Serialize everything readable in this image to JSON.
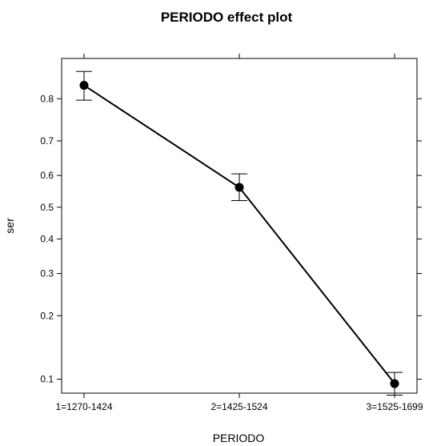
{
  "chart_data": {
    "type": "line",
    "title": "PERIODO effect plot",
    "xlabel": "PERIODO",
    "ylabel": "ser",
    "categories": [
      "1=1270-1424",
      "2=1425-1524",
      "3=1525-1699"
    ],
    "y_scale": "logit",
    "ylim": [
      0.085,
      0.87
    ],
    "y_ticks": [
      0.1,
      0.2,
      0.3,
      0.4,
      0.5,
      0.6,
      0.7,
      0.8
    ],
    "y_tick_labels": [
      "0.1",
      "0.2",
      "0.3",
      "0.4",
      "0.5",
      "0.6",
      "0.7",
      "0.8"
    ],
    "series": [
      {
        "values": [
          0.826,
          0.563,
          0.095
        ],
        "lower": [
          0.797,
          0.521,
          0.083
        ],
        "upper": [
          0.85,
          0.605,
          0.108
        ]
      }
    ],
    "grid": false,
    "legend": "none"
  }
}
